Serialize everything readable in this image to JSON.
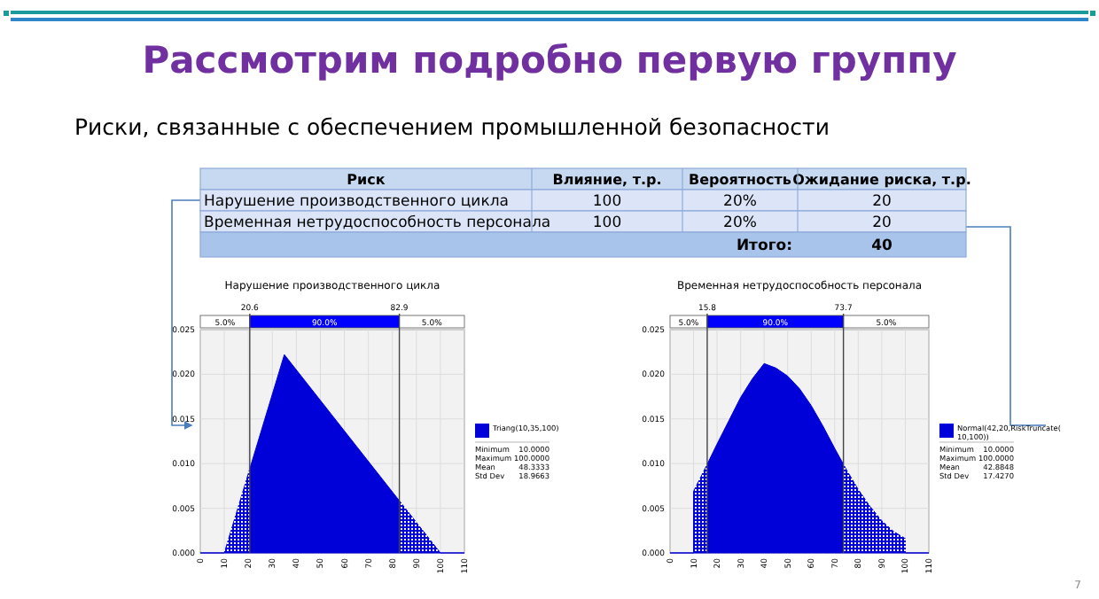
{
  "chart_data": [
    {
      "type": "other",
      "title": "Рассмотрим подробно первую группу",
      "subtitle": "Риски, связанные с обеспечением промышленной безопасности",
      "xlabel": "Риск",
      "categories": [
        "Нарушение производственного цикла",
        "Временная нетрудоспособность персонала"
      ],
      "series": [
        {
          "name": "Влияние, т.р.",
          "values": [
            100,
            100
          ]
        },
        {
          "name": "Вероятность",
          "values": [
            20,
            20
          ],
          "value_labels": [
            "20%",
            "20%"
          ]
        },
        {
          "name": "Ожидание риска, т.р.",
          "values": [
            20,
            20
          ]
        }
      ],
      "data_labels": true,
      "totals": [
        "40"
      ],
      "annotations": [
        "Итого:",
        "7"
      ]
    },
    {
      "type": "area",
      "title": "Нарушение производственного цикла",
      "x": [
        0,
        10,
        35,
        100,
        110
      ],
      "series": [
        {
          "name": "Triang(10,35,100)",
          "color": "#0000d8",
          "values": [
            0,
            0,
            0.0222,
            0,
            0
          ]
        }
      ],
      "xlim": [
        0,
        110
      ],
      "xticks": [
        0,
        10,
        20,
        30,
        40,
        50,
        60,
        70,
        80,
        90,
        100,
        110
      ],
      "ylim": [
        0,
        0.025
      ],
      "yticks": [
        {
          "value": 0,
          "label": "0.000"
        },
        {
          "value": 0.005,
          "label": "0.005"
        },
        {
          "value": 0.01,
          "label": "0.010"
        },
        {
          "value": 0.015,
          "label": "0.015"
        },
        {
          "value": 0.02,
          "label": "0.020"
        },
        {
          "value": 0.025,
          "label": "0.025"
        }
      ],
      "grid": true,
      "legend": "right",
      "ref_lines": [
        {
          "axis": "x",
          "value": 20.6,
          "label": "20.6"
        },
        {
          "axis": "x",
          "value": 82.9,
          "label": "82.9"
        }
      ],
      "annotations": [
        "5.0%",
        "90.0%",
        "5.0%",
        "Minimum 10.0000",
        "Maximum 100.0000",
        "Mean 48.3333",
        "Std Dev 18.9663"
      ]
    },
    {
      "type": "area",
      "title": "Временная нетрудоспособность персонала",
      "x": [
        0,
        10,
        10,
        15,
        20,
        25,
        30,
        35,
        40,
        45,
        50,
        55,
        60,
        65,
        70,
        75,
        80,
        85,
        90,
        95,
        100,
        100,
        110
      ],
      "series": [
        {
          "name": "Normal(42,20,RiskTruncate(10,100))",
          "color": "#0000d8",
          "values": [
            0,
            0,
            0.0069,
            0.0095,
            0.0122,
            0.0148,
            0.0174,
            0.0195,
            0.0212,
            0.0207,
            0.0198,
            0.0184,
            0.0165,
            0.0142,
            0.0117,
            0.0093,
            0.0071,
            0.0052,
            0.0036,
            0.0024,
            0.0016,
            0,
            0
          ]
        }
      ],
      "xlim": [
        0,
        110
      ],
      "xticks": [
        0,
        10,
        20,
        30,
        40,
        50,
        60,
        70,
        80,
        90,
        100,
        110
      ],
      "ylim": [
        0,
        0.025
      ],
      "yticks": [
        {
          "value": 0,
          "label": "0.000"
        },
        {
          "value": 0.005,
          "label": "0.005"
        },
        {
          "value": 0.01,
          "label": "0.010"
        },
        {
          "value": 0.015,
          "label": "0.015"
        },
        {
          "value": 0.02,
          "label": "0.020"
        },
        {
          "value": 0.025,
          "label": "0.025"
        }
      ],
      "grid": true,
      "legend": "right",
      "ref_lines": [
        {
          "axis": "x",
          "value": 15.8,
          "label": "15.8"
        },
        {
          "axis": "x",
          "value": 73.7,
          "label": "73.7"
        }
      ],
      "annotations": [
        "5.0%",
        "90.0%",
        "5.0%",
        "Minimum 10.0000",
        "Maximum 100.0000",
        "Mean 42.8848",
        "Std Dev 17.4270"
      ]
    }
  ]
}
